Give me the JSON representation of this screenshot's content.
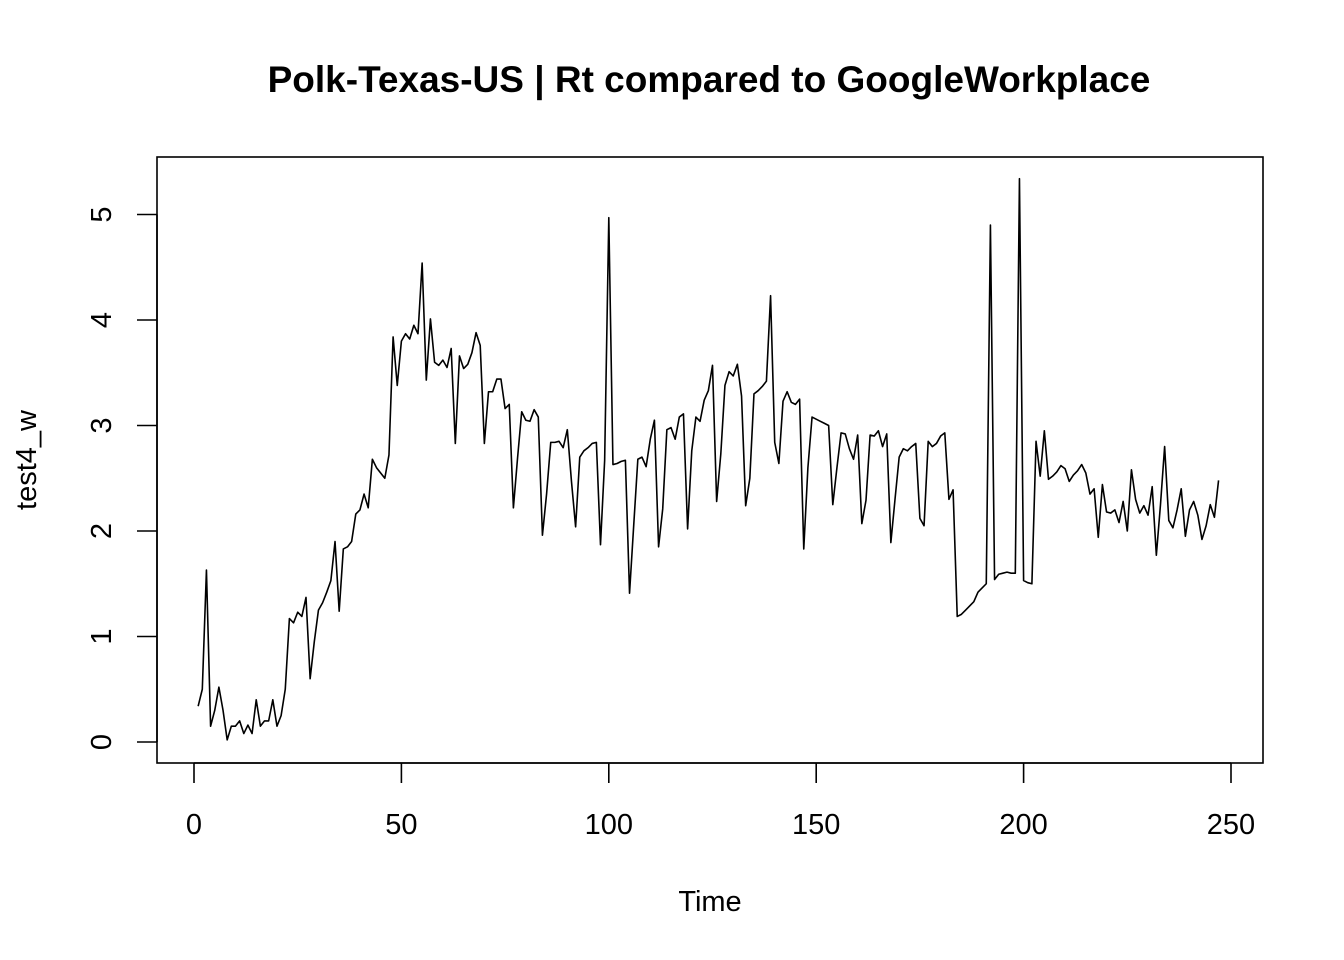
{
  "chart_data": {
    "type": "line",
    "title": "Polk-Texas-US | Rt compared to GoogleWorkplace",
    "xlabel": "Time",
    "ylabel": "test4_w",
    "xlim": [
      0,
      250
    ],
    "ylim": [
      0,
      5.4
    ],
    "x_ticks": [
      0,
      50,
      100,
      150,
      200,
      250
    ],
    "y_ticks": [
      0,
      1,
      2,
      3,
      4,
      5
    ],
    "grid": false,
    "legend": "none",
    "line_color": "#000000",
    "x_start": 1,
    "values": [
      0.34,
      0.5,
      1.63,
      0.15,
      0.3,
      0.52,
      0.3,
      0.02,
      0.15,
      0.15,
      0.2,
      0.08,
      0.16,
      0.08,
      0.4,
      0.15,
      0.2,
      0.2,
      0.4,
      0.15,
      0.25,
      0.5,
      1.17,
      1.13,
      1.23,
      1.19,
      1.37,
      0.6,
      0.95,
      1.25,
      1.32,
      1.42,
      1.53,
      1.9,
      1.24,
      1.83,
      1.85,
      1.9,
      2.16,
      2.2,
      2.35,
      2.22,
      2.68,
      2.6,
      2.55,
      2.5,
      2.72,
      3.84,
      3.38,
      3.8,
      3.87,
      3.82,
      3.95,
      3.87,
      4.54,
      3.43,
      4.01,
      3.6,
      3.57,
      3.62,
      3.55,
      3.73,
      2.83,
      3.66,
      3.54,
      3.58,
      3.69,
      3.88,
      3.76,
      2.83,
      3.32,
      3.32,
      3.44,
      3.44,
      3.16,
      3.2,
      2.22,
      2.69,
      3.13,
      3.05,
      3.04,
      3.15,
      3.08,
      1.96,
      2.35,
      2.84,
      2.84,
      2.85,
      2.79,
      2.96,
      2.47,
      2.04,
      2.7,
      2.76,
      2.79,
      2.83,
      2.84,
      1.87,
      2.67,
      4.97,
      2.63,
      2.64,
      2.66,
      2.67,
      1.41,
      2.05,
      2.68,
      2.7,
      2.61,
      2.87,
      3.05,
      1.85,
      2.21,
      2.96,
      2.98,
      2.87,
      3.08,
      3.11,
      2.02,
      2.76,
      3.08,
      3.04,
      3.24,
      3.33,
      3.57,
      2.28,
      2.73,
      3.38,
      3.51,
      3.47,
      3.58,
      3.28,
      2.24,
      2.5,
      3.3,
      3.33,
      3.37,
      3.42,
      4.23,
      2.84,
      2.64,
      3.23,
      3.32,
      3.22,
      3.2,
      3.25,
      1.83,
      2.6,
      3.08,
      3.06,
      3.04,
      3.02,
      3.0,
      2.25,
      2.6,
      2.93,
      2.92,
      2.78,
      2.68,
      2.91,
      2.07,
      2.29,
      2.91,
      2.9,
      2.95,
      2.8,
      2.92,
      1.89,
      2.3,
      2.7,
      2.78,
      2.76,
      2.8,
      2.83,
      2.12,
      2.05,
      2.85,
      2.8,
      2.83,
      2.9,
      2.93,
      2.3,
      2.39,
      1.19,
      1.21,
      1.25,
      1.29,
      1.33,
      1.42,
      1.46,
      1.5,
      4.9,
      1.54,
      1.59,
      1.6,
      1.61,
      1.6,
      1.6,
      5.34,
      1.53,
      1.51,
      1.5,
      2.85,
      2.52,
      2.95,
      2.49,
      2.52,
      2.56,
      2.62,
      2.59,
      2.47,
      2.53,
      2.57,
      2.63,
      2.55,
      2.35,
      2.4,
      1.94,
      2.44,
      2.18,
      2.17,
      2.2,
      2.08,
      2.28,
      2.0,
      2.58,
      2.3,
      2.17,
      2.24,
      2.15,
      2.42,
      1.77,
      2.25,
      2.8,
      2.1,
      2.03,
      2.2,
      2.4,
      1.95,
      2.2,
      2.28,
      2.15,
      1.92,
      2.05,
      2.25,
      2.13,
      2.48
    ]
  }
}
